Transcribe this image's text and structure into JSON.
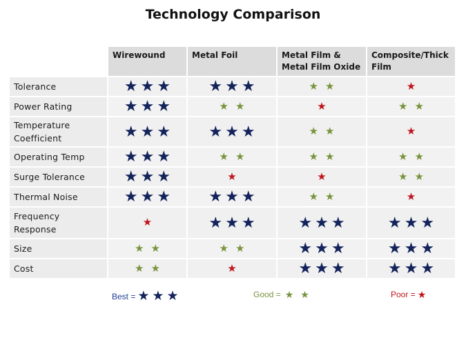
{
  "title": "Technology Comparison",
  "columns": [
    "Wirewound",
    "Metal Foil",
    "Metal Film  &\nMetal Film Oxide",
    "Composite/Thick\nFilm"
  ],
  "rows": [
    {
      "label": "Tolerance",
      "ratings": [
        3,
        3,
        2,
        1
      ]
    },
    {
      "label": "Power Rating",
      "ratings": [
        3,
        2,
        1,
        2
      ]
    },
    {
      "label": "Temperature\nCoefficient",
      "ratings": [
        3,
        3,
        2,
        1
      ]
    },
    {
      "label": "Operating Temp",
      "ratings": [
        3,
        2,
        2,
        2
      ]
    },
    {
      "label": "Surge Tolerance",
      "ratings": [
        3,
        1,
        1,
        2
      ]
    },
    {
      "label": "Thermal Noise",
      "ratings": [
        3,
        3,
        2,
        1
      ]
    },
    {
      "label": "Frequency\nResponse",
      "ratings": [
        1,
        3,
        3,
        3
      ]
    },
    {
      "label": "Size",
      "ratings": [
        2,
        2,
        3,
        3
      ]
    },
    {
      "label": "Cost",
      "ratings": [
        2,
        1,
        3,
        3
      ]
    }
  ],
  "legend": {
    "best": {
      "label": "Best =",
      "stars": 3
    },
    "good": {
      "label": "Good =",
      "stars": 2
    },
    "poor": {
      "label": "Poor =",
      "stars": 1
    }
  },
  "colors": {
    "best": "#13235b",
    "good": "#77933c",
    "poor": "#c0141b"
  },
  "icons": {
    "rating": "star-icon"
  }
}
